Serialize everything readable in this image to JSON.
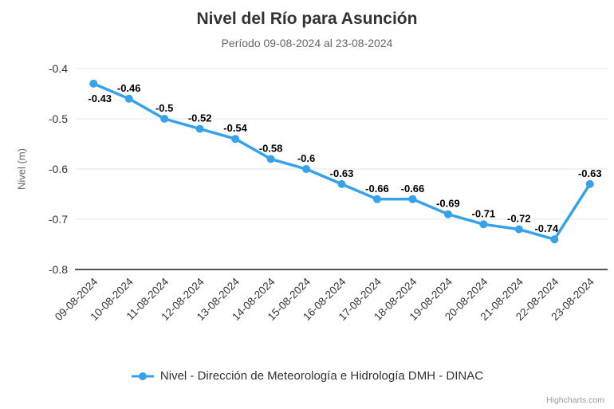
{
  "title": "Nivel del Río para Asunción",
  "subtitle": "Período 09-08-2024 al 23-08-2024",
  "credits": "Highcharts.com",
  "colors": {
    "series": "#36A2EB",
    "grid": "#e6e6e6",
    "axis_line": "#555555",
    "title": "#333333",
    "subtitle": "#666666",
    "axis_labels": "#333333",
    "data_labels": "#000000",
    "credits": "#999999"
  },
  "chart_data": {
    "type": "line",
    "title": "Nivel del Río para Asunción",
    "subtitle": "Período 09-08-2024 al 23-08-2024",
    "categories": [
      "09-08-2024",
      "10-08-2024",
      "11-08-2024",
      "12-08-2024",
      "13-08-2024",
      "14-08-2024",
      "15-08-2024",
      "16-08-2024",
      "17-08-2024",
      "18-08-2024",
      "19-08-2024",
      "20-08-2024",
      "21-08-2024",
      "22-08-2024",
      "23-08-2024"
    ],
    "series": [
      {
        "name": "Nivel - Dirección de Meteorología e Hidrología DMH - DINAC",
        "values": [
          -0.43,
          -0.46,
          -0.5,
          -0.52,
          -0.54,
          -0.58,
          -0.6,
          -0.63,
          -0.66,
          -0.66,
          -0.69,
          -0.71,
          -0.72,
          -0.74,
          -0.63
        ]
      }
    ],
    "point_labels": [
      "-0.43",
      "-0.46",
      "-0.5",
      "-0.52",
      "-0.54",
      "-0.58",
      "-0.6",
      "-0.63",
      "-0.66",
      "-0.66",
      "-0.69",
      "-0.71",
      "-0.72",
      "-0.74",
      "-0.63"
    ],
    "xlabel": "",
    "ylabel": "Nivel (m)",
    "yticks": [
      -0.4,
      -0.5,
      -0.6,
      -0.7,
      -0.8
    ],
    "ytick_labels": [
      "-0.4",
      "-0.5",
      "-0.6",
      "-0.7",
      "-0.8"
    ],
    "ylim": [
      -0.8,
      -0.4
    ],
    "grid": true,
    "legend_position": "bottom"
  }
}
